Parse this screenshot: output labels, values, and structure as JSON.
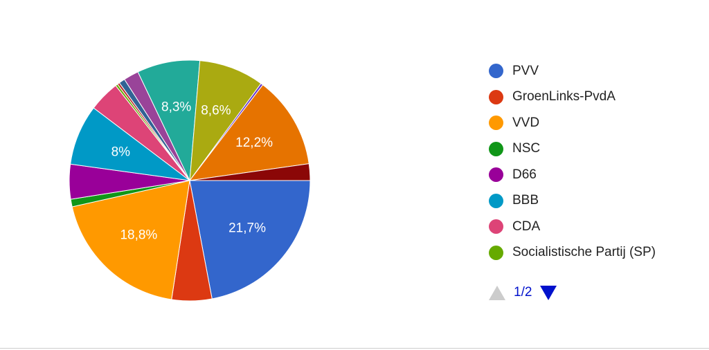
{
  "chart_data": {
    "type": "pie",
    "slices": [
      {
        "value": 21.7,
        "label": "21,7%",
        "color": "#3366cc"
      },
      {
        "value": 5.3,
        "label": "",
        "color": "#dc3912"
      },
      {
        "value": 18.8,
        "label": "18,8%",
        "color": "#ff9900"
      },
      {
        "value": 1.0,
        "label": "",
        "color": "#109618"
      },
      {
        "value": 4.6,
        "label": "",
        "color": "#990099"
      },
      {
        "value": 8.0,
        "label": "8%",
        "color": "#0099c6"
      },
      {
        "value": 4.1,
        "label": "",
        "color": "#dd4477"
      },
      {
        "value": 0.3,
        "label": "",
        "color": "#66aa00"
      },
      {
        "value": 0.3,
        "label": "",
        "color": "#b82e2e"
      },
      {
        "value": 0.8,
        "label": "",
        "color": "#316395"
      },
      {
        "value": 2.0,
        "label": "",
        "color": "#994499"
      },
      {
        "value": 8.3,
        "label": "8,3%",
        "color": "#22aa99"
      },
      {
        "value": 8.6,
        "label": "8,6%",
        "color": "#aaaa11"
      },
      {
        "value": 0.3,
        "label": "",
        "color": "#6633cc"
      },
      {
        "value": 12.2,
        "label": "12,2%",
        "color": "#e67300"
      },
      {
        "value": 2.2,
        "label": "",
        "color": "#8b0707"
      }
    ],
    "legend": {
      "placement": "right",
      "entries": [
        {
          "name": "PVV",
          "color": "#3366cc"
        },
        {
          "name": "GroenLinks-PvdA",
          "color": "#dc3912"
        },
        {
          "name": "VVD",
          "color": "#ff9900"
        },
        {
          "name": "NSC",
          "color": "#109618"
        },
        {
          "name": "D66",
          "color": "#990099"
        },
        {
          "name": "BBB",
          "color": "#0099c6"
        },
        {
          "name": "CDA",
          "color": "#dd4477"
        },
        {
          "name": "Socialistische Partij (SP)",
          "color": "#66aa00"
        }
      ]
    }
  },
  "pager": {
    "text": "1/2"
  }
}
